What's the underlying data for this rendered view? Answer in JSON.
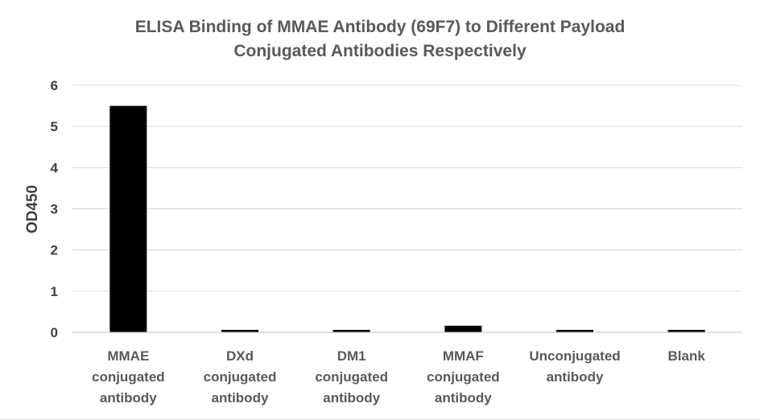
{
  "chart_data": {
    "type": "bar",
    "title_lines": [
      "ELISA Binding of MMAE Antibody (69F7) to Different Payload",
      "Conjugated Antibodies Respectively"
    ],
    "xlabel": "",
    "ylabel": "OD450",
    "categories": [
      [
        "MMAE",
        "conjugated",
        "antibody"
      ],
      [
        "DXd",
        "conjugated",
        "antibody"
      ],
      [
        "DM1",
        "conjugated",
        "antibody"
      ],
      [
        "MMAF",
        "conjugated",
        "antibody"
      ],
      [
        "Unconjugated",
        "antibody"
      ],
      [
        "Blank"
      ]
    ],
    "values": [
      5.5,
      0.06,
      0.06,
      0.16,
      0.06,
      0.06
    ],
    "ylim": [
      0,
      6
    ],
    "yticks": [
      "0",
      "1",
      "2",
      "3",
      "4",
      "5",
      "6"
    ],
    "grid": true,
    "bar_color": "#000000"
  }
}
